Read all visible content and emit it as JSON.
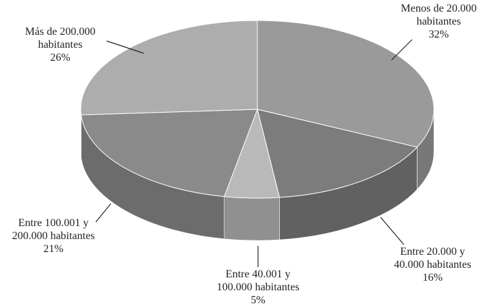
{
  "chart_data": {
    "type": "pie",
    "style": "3d",
    "title": "",
    "slices": [
      {
        "lines": [
          "Menos de 20.000",
          "habitantes",
          "32%"
        ],
        "value": 32,
        "color": "#9a9a9a"
      },
      {
        "lines": [
          "Entre 20.000 y",
          "40.000 habitantes",
          "16%"
        ],
        "value": 16,
        "color": "#7c7c7c"
      },
      {
        "lines": [
          "Entre 40.001 y",
          "100.000 habitantes",
          "5%"
        ],
        "value": 5,
        "color": "#b9b9b9"
      },
      {
        "lines": [
          "Entre 100.001 y",
          "200.000 habitantes",
          "21%"
        ],
        "value": 21,
        "color": "#8a8a8a"
      },
      {
        "lines": [
          "Más de 200.000",
          "habitantes",
          "26%"
        ],
        "value": 26,
        "color": "#adadad"
      }
    ]
  }
}
